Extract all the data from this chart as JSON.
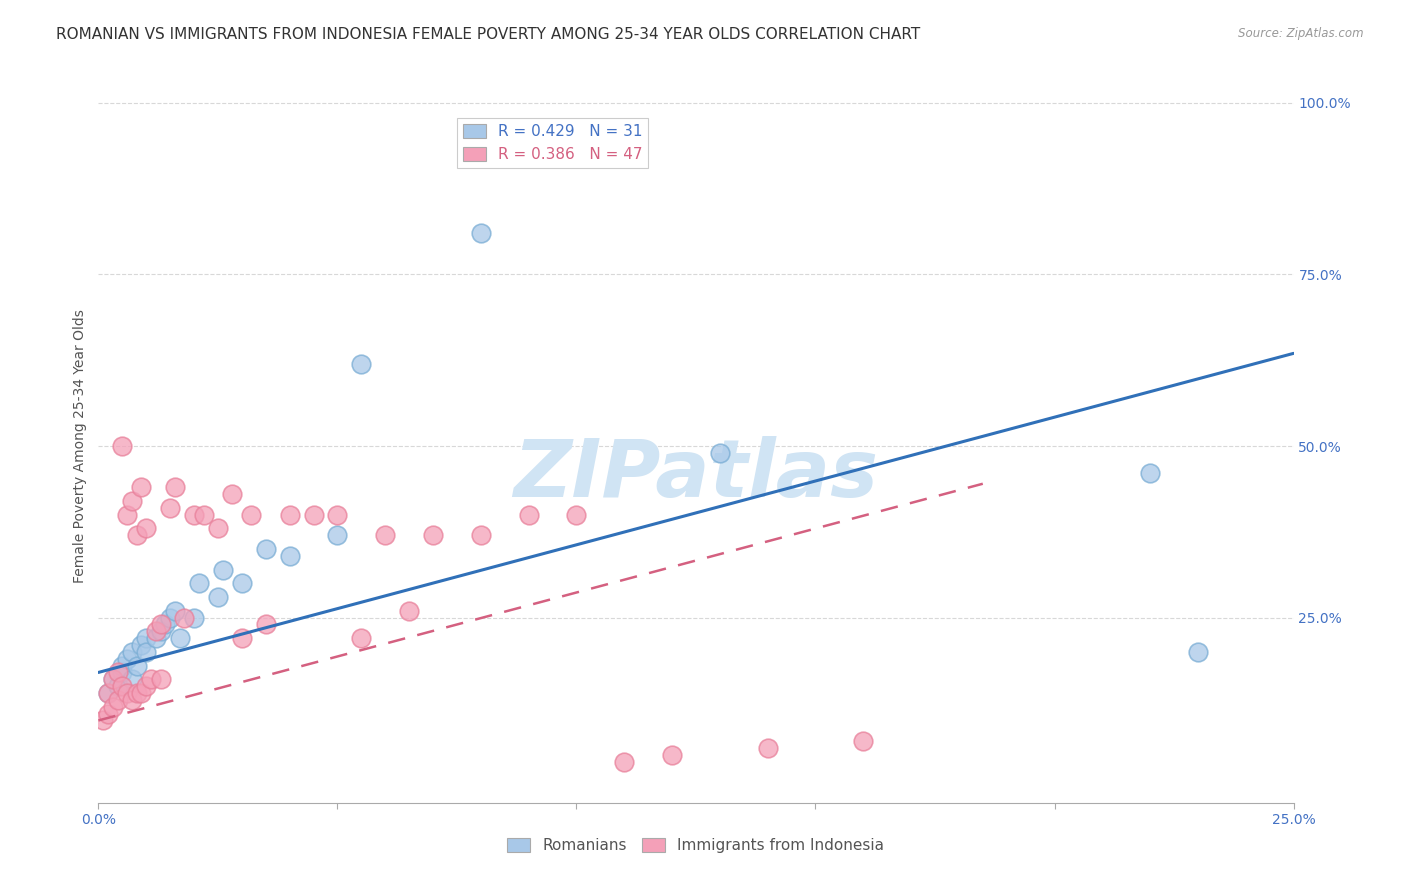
{
  "title": "ROMANIAN VS IMMIGRANTS FROM INDONESIA FEMALE POVERTY AMONG 25-34 YEAR OLDS CORRELATION CHART",
  "source": "Source: ZipAtlas.com",
  "ylabel": "Female Poverty Among 25-34 Year Olds",
  "xlim": [
    0.0,
    0.25
  ],
  "ylim": [
    -0.02,
    1.02
  ],
  "blue_color": "#a8c8e8",
  "pink_color": "#f4a0b8",
  "blue_edge_color": "#7aadd4",
  "pink_edge_color": "#e8809a",
  "blue_line_color": "#3070b8",
  "pink_line_color": "#d46080",
  "watermark_color": "#d0e4f4",
  "blue_scatter_x": [
    0.002,
    0.003,
    0.004,
    0.005,
    0.005,
    0.006,
    0.007,
    0.007,
    0.008,
    0.009,
    0.01,
    0.01,
    0.012,
    0.013,
    0.014,
    0.015,
    0.016,
    0.017,
    0.02,
    0.021,
    0.025,
    0.026,
    0.03,
    0.035,
    0.04,
    0.05,
    0.055,
    0.08,
    0.13,
    0.22,
    0.23
  ],
  "blue_scatter_y": [
    0.14,
    0.16,
    0.15,
    0.17,
    0.18,
    0.19,
    0.16,
    0.2,
    0.18,
    0.21,
    0.22,
    0.2,
    0.22,
    0.23,
    0.24,
    0.25,
    0.26,
    0.22,
    0.25,
    0.3,
    0.28,
    0.32,
    0.3,
    0.35,
    0.34,
    0.37,
    0.62,
    0.81,
    0.49,
    0.46,
    0.2
  ],
  "pink_scatter_x": [
    0.001,
    0.002,
    0.002,
    0.003,
    0.003,
    0.004,
    0.004,
    0.005,
    0.005,
    0.006,
    0.006,
    0.007,
    0.007,
    0.008,
    0.008,
    0.009,
    0.009,
    0.01,
    0.01,
    0.011,
    0.012,
    0.013,
    0.013,
    0.015,
    0.016,
    0.018,
    0.02,
    0.022,
    0.025,
    0.028,
    0.03,
    0.032,
    0.035,
    0.04,
    0.045,
    0.05,
    0.055,
    0.06,
    0.065,
    0.07,
    0.08,
    0.09,
    0.1,
    0.11,
    0.12,
    0.14,
    0.16
  ],
  "pink_scatter_y": [
    0.1,
    0.11,
    0.14,
    0.12,
    0.16,
    0.13,
    0.17,
    0.15,
    0.5,
    0.14,
    0.4,
    0.13,
    0.42,
    0.14,
    0.37,
    0.14,
    0.44,
    0.15,
    0.38,
    0.16,
    0.23,
    0.16,
    0.24,
    0.41,
    0.44,
    0.25,
    0.4,
    0.4,
    0.38,
    0.43,
    0.22,
    0.4,
    0.24,
    0.4,
    0.4,
    0.4,
    0.22,
    0.37,
    0.26,
    0.37,
    0.37,
    0.4,
    0.4,
    0.04,
    0.05,
    0.06,
    0.07
  ],
  "blue_line_x": [
    0.0,
    0.25
  ],
  "blue_line_y": [
    0.17,
    0.635
  ],
  "pink_line_x": [
    0.0,
    0.185
  ],
  "pink_line_y": [
    0.1,
    0.445
  ],
  "grid_color": "#d8d8d8",
  "background_color": "#ffffff",
  "title_fontsize": 11,
  "axis_label_fontsize": 10,
  "tick_fontsize": 10,
  "legend_fontsize": 11,
  "marker_size": 180
}
